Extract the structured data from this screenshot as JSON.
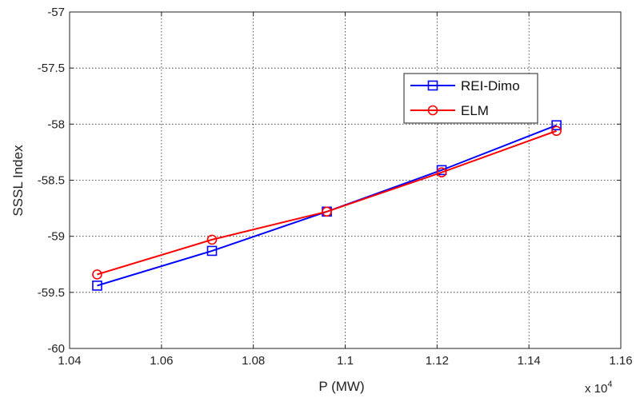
{
  "chart_data": {
    "type": "line",
    "title": "",
    "xlabel": "P (MW)",
    "ylabel": "SSSL Index",
    "x_multiplier_label": {
      "base": "x 10",
      "exponent": "4"
    },
    "xlim": [
      1.04,
      1.16
    ],
    "ylim": [
      -60,
      -57
    ],
    "xticks": [
      "1.04",
      "1.06",
      "1.08",
      "1.1",
      "1.12",
      "1.14",
      "1.16"
    ],
    "yticks": [
      "-57",
      "-57.5",
      "-58",
      "-58.5",
      "-59",
      "-59.5",
      "-60"
    ],
    "x": [
      1.046,
      1.071,
      1.096,
      1.121,
      1.146
    ],
    "grid": true,
    "legend_position": "top-right",
    "series": [
      {
        "name": "REI-Dimo",
        "color": "#0000ff",
        "marker": "square",
        "values": [
          -59.44,
          -59.13,
          -58.78,
          -58.41,
          -58.01
        ]
      },
      {
        "name": "ELM",
        "color": "#ff0000",
        "marker": "circle",
        "values": [
          -59.34,
          -59.03,
          -58.78,
          -58.43,
          -58.06
        ]
      }
    ]
  }
}
